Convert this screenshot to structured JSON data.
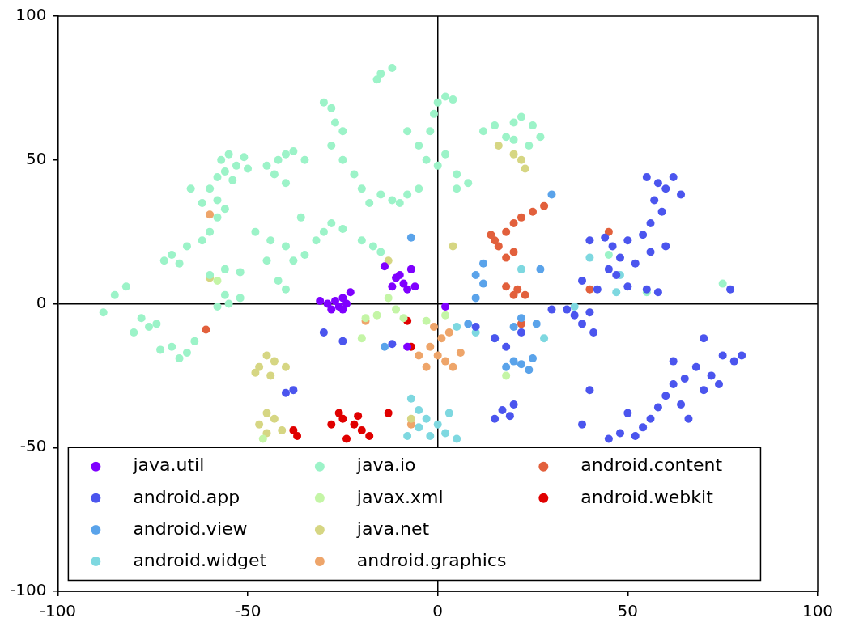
{
  "chart_data": {
    "type": "scatter",
    "xlim": [
      -100,
      100
    ],
    "xticks": [
      -100,
      -50,
      0,
      50,
      100
    ],
    "ylim": [
      -100,
      100
    ],
    "yticks": [
      -100,
      -50,
      0,
      50,
      100
    ],
    "grid": false,
    "legend": "lower left",
    "marker": "circle",
    "series": [
      {
        "name": "java.util",
        "color": "#7f00ff",
        "values": [
          [
            -29,
            0
          ],
          [
            -27,
            1
          ],
          [
            -25,
            2
          ],
          [
            -24,
            0
          ],
          [
            -26,
            -1
          ],
          [
            -28,
            -2
          ],
          [
            -23,
            4
          ],
          [
            -31,
            1
          ],
          [
            -25,
            -2
          ],
          [
            -11,
            9
          ],
          [
            -9,
            7
          ],
          [
            -8,
            5
          ],
          [
            -12,
            6
          ],
          [
            -10,
            10
          ],
          [
            -14,
            13
          ],
          [
            -7,
            12
          ],
          [
            -6,
            6
          ],
          [
            -8,
            -15
          ],
          [
            2,
            -1
          ]
        ]
      },
      {
        "name": "android.app",
        "color": "#4b55ee",
        "values": [
          [
            55,
            44
          ],
          [
            58,
            42
          ],
          [
            60,
            40
          ],
          [
            62,
            44
          ],
          [
            64,
            38
          ],
          [
            57,
            36
          ],
          [
            59,
            32
          ],
          [
            56,
            28
          ],
          [
            54,
            24
          ],
          [
            50,
            22
          ],
          [
            46,
            20
          ],
          [
            44,
            23
          ],
          [
            40,
            22
          ],
          [
            48,
            16
          ],
          [
            52,
            14
          ],
          [
            56,
            18
          ],
          [
            60,
            20
          ],
          [
            47,
            10
          ],
          [
            50,
            6
          ],
          [
            55,
            5
          ],
          [
            58,
            4
          ],
          [
            45,
            12
          ],
          [
            38,
            8
          ],
          [
            42,
            5
          ],
          [
            40,
            -3
          ],
          [
            38,
            -7
          ],
          [
            41,
            -10
          ],
          [
            36,
            -4
          ],
          [
            34,
            -2
          ],
          [
            70,
            -12
          ],
          [
            75,
            -18
          ],
          [
            78,
            -20
          ],
          [
            72,
            -25
          ],
          [
            68,
            -22
          ],
          [
            65,
            -26
          ],
          [
            62,
            -28
          ],
          [
            60,
            -32
          ],
          [
            58,
            -36
          ],
          [
            56,
            -40
          ],
          [
            54,
            -43
          ],
          [
            52,
            -46
          ],
          [
            64,
            -35
          ],
          [
            66,
            -40
          ],
          [
            70,
            -30
          ],
          [
            74,
            -28
          ],
          [
            80,
            -18
          ],
          [
            62,
            -20
          ],
          [
            50,
            -38
          ],
          [
            48,
            -45
          ],
          [
            45,
            -47
          ],
          [
            38,
            -42
          ],
          [
            40,
            -30
          ],
          [
            17,
            -37
          ],
          [
            15,
            -40
          ],
          [
            19,
            -39
          ],
          [
            20,
            -35
          ],
          [
            -38,
            -30
          ],
          [
            -40,
            -31
          ],
          [
            -30,
            -10
          ],
          [
            -25,
            -13
          ],
          [
            -12,
            -14
          ],
          [
            15,
            -12
          ],
          [
            18,
            -15
          ],
          [
            22,
            -10
          ],
          [
            10,
            -8
          ],
          [
            30,
            -2
          ],
          [
            77,
            5
          ]
        ]
      },
      {
        "name": "android.view",
        "color": "#5aa3ea",
        "values": [
          [
            20,
            -20
          ],
          [
            22,
            -21
          ],
          [
            25,
            -19
          ],
          [
            24,
            -23
          ],
          [
            18,
            -22
          ],
          [
            15,
            -12
          ],
          [
            12,
            7
          ],
          [
            10,
            10
          ],
          [
            12,
            14
          ],
          [
            10,
            2
          ],
          [
            30,
            38
          ],
          [
            -7,
            23
          ],
          [
            27,
            12
          ],
          [
            20,
            -8
          ],
          [
            22,
            -5
          ],
          [
            26,
            -7
          ],
          [
            -14,
            -15
          ],
          [
            8,
            -7
          ]
        ]
      },
      {
        "name": "android.widget",
        "color": "#7ed8e0",
        "values": [
          [
            -3,
            -40
          ],
          [
            0,
            -42
          ],
          [
            2,
            -45
          ],
          [
            -5,
            -37
          ],
          [
            3,
            -38
          ],
          [
            -2,
            -46
          ],
          [
            5,
            -47
          ],
          [
            -7,
            -33
          ],
          [
            -5,
            -43
          ],
          [
            -8,
            -46
          ],
          [
            40,
            16
          ],
          [
            48,
            10
          ],
          [
            47,
            4
          ],
          [
            36,
            -1
          ],
          [
            10,
            -10
          ],
          [
            5,
            -8
          ],
          [
            22,
            12
          ],
          [
            28,
            -12
          ]
        ]
      },
      {
        "name": "java.io",
        "color": "#9cf3c8",
        "values": [
          [
            -57,
            50
          ],
          [
            -55,
            52
          ],
          [
            -53,
            48
          ],
          [
            -51,
            51
          ],
          [
            -56,
            46
          ],
          [
            -50,
            47
          ],
          [
            -58,
            44
          ],
          [
            -54,
            43
          ],
          [
            -60,
            40
          ],
          [
            -65,
            40
          ],
          [
            -88,
            -3
          ],
          [
            -85,
            3
          ],
          [
            -82,
            6
          ],
          [
            -78,
            -5
          ],
          [
            -76,
            -8
          ],
          [
            -80,
            -10
          ],
          [
            -74,
            -7
          ],
          [
            -70,
            -15
          ],
          [
            -66,
            -17
          ],
          [
            -64,
            -13
          ],
          [
            -68,
            -19
          ],
          [
            -73,
            -16
          ],
          [
            -72,
            15
          ],
          [
            -70,
            17
          ],
          [
            -68,
            14
          ],
          [
            -66,
            20
          ],
          [
            -62,
            22
          ],
          [
            -60,
            25
          ],
          [
            -58,
            30
          ],
          [
            -56,
            33
          ],
          [
            -62,
            35
          ],
          [
            -58,
            36
          ],
          [
            -58,
            -1
          ],
          [
            -55,
            0
          ],
          [
            -52,
            2
          ],
          [
            -56,
            3
          ],
          [
            -60,
            10
          ],
          [
            -56,
            12
          ],
          [
            -52,
            11
          ],
          [
            -48,
            25
          ],
          [
            -44,
            22
          ],
          [
            -40,
            20
          ],
          [
            -38,
            15
          ],
          [
            -35,
            17
          ],
          [
            -32,
            22
          ],
          [
            -30,
            25
          ],
          [
            -28,
            28
          ],
          [
            -25,
            26
          ],
          [
            -36,
            30
          ],
          [
            -45,
            48
          ],
          [
            -42,
            50
          ],
          [
            -40,
            52
          ],
          [
            -38,
            53
          ],
          [
            -35,
            50
          ],
          [
            -43,
            45
          ],
          [
            -40,
            42
          ],
          [
            -30,
            70
          ],
          [
            -28,
            68
          ],
          [
            -27,
            63
          ],
          [
            -25,
            60
          ],
          [
            -28,
            55
          ],
          [
            -25,
            50
          ],
          [
            -22,
            45
          ],
          [
            -20,
            40
          ],
          [
            -18,
            35
          ],
          [
            -15,
            38
          ],
          [
            -12,
            36
          ],
          [
            -10,
            35
          ],
          [
            -8,
            38
          ],
          [
            -5,
            40
          ],
          [
            -15,
            80
          ],
          [
            -12,
            82
          ],
          [
            -16,
            78
          ],
          [
            -20,
            22
          ],
          [
            -17,
            20
          ],
          [
            -15,
            18
          ],
          [
            -5,
            55
          ],
          [
            -3,
            50
          ],
          [
            0,
            48
          ],
          [
            2,
            52
          ],
          [
            -2,
            60
          ],
          [
            -8,
            60
          ],
          [
            0,
            70
          ],
          [
            2,
            72
          ],
          [
            4,
            71
          ],
          [
            -1,
            66
          ],
          [
            5,
            45
          ],
          [
            8,
            42
          ],
          [
            5,
            40
          ],
          [
            12,
            60
          ],
          [
            15,
            62
          ],
          [
            18,
            58
          ],
          [
            20,
            63
          ],
          [
            22,
            65
          ],
          [
            25,
            62
          ],
          [
            27,
            58
          ],
          [
            20,
            57
          ],
          [
            24,
            55
          ],
          [
            -45,
            15
          ],
          [
            -42,
            8
          ],
          [
            -40,
            5
          ],
          [
            75,
            7
          ],
          [
            45,
            17
          ],
          [
            55,
            4
          ]
        ]
      },
      {
        "name": "javax.xml",
        "color": "#c4f5a6",
        "values": [
          [
            -13,
            2
          ],
          [
            -11,
            -2
          ],
          [
            -9,
            -5
          ],
          [
            -16,
            -4
          ],
          [
            -19,
            -5
          ],
          [
            -3,
            -6
          ],
          [
            -20,
            -12
          ],
          [
            2,
            -4
          ],
          [
            18,
            -25
          ],
          [
            -46,
            -47
          ],
          [
            -58,
            8
          ]
        ]
      },
      {
        "name": "java.net",
        "color": "#d6d683",
        "values": [
          [
            -45,
            -18
          ],
          [
            -43,
            -20
          ],
          [
            -47,
            -22
          ],
          [
            -44,
            -25
          ],
          [
            -48,
            -24
          ],
          [
            -40,
            -22
          ],
          [
            -45,
            -38
          ],
          [
            -43,
            -40
          ],
          [
            -47,
            -42
          ],
          [
            -41,
            -44
          ],
          [
            -45,
            -45
          ],
          [
            22,
            50
          ],
          [
            23,
            47
          ],
          [
            20,
            52
          ],
          [
            16,
            55
          ],
          [
            -13,
            15
          ],
          [
            4,
            20
          ],
          [
            -7,
            -40
          ],
          [
            -60,
            9
          ]
        ]
      },
      {
        "name": "android.graphics",
        "color": "#eea56a",
        "values": [
          [
            -2,
            -15
          ],
          [
            0,
            -18
          ],
          [
            2,
            -20
          ],
          [
            4,
            -22
          ],
          [
            -3,
            -22
          ],
          [
            -5,
            -18
          ],
          [
            1,
            -12
          ],
          [
            3,
            -10
          ],
          [
            -1,
            -8
          ],
          [
            6,
            -17
          ],
          [
            -60,
            31
          ],
          [
            -19,
            -6
          ],
          [
            -7,
            -42
          ]
        ]
      },
      {
        "name": "android.content",
        "color": "#e2603c",
        "values": [
          [
            15,
            22
          ],
          [
            18,
            25
          ],
          [
            20,
            28
          ],
          [
            22,
            30
          ],
          [
            25,
            32
          ],
          [
            28,
            34
          ],
          [
            16,
            20
          ],
          [
            20,
            18
          ],
          [
            14,
            24
          ],
          [
            18,
            16
          ],
          [
            21,
            5
          ],
          [
            23,
            3
          ],
          [
            18,
            6
          ],
          [
            20,
            3
          ],
          [
            45,
            25
          ],
          [
            40,
            5
          ],
          [
            -61,
            -9
          ],
          [
            22,
            -7
          ]
        ]
      },
      {
        "name": "android.webkit",
        "color": "#e00000",
        "values": [
          [
            -25,
            -40
          ],
          [
            -22,
            -42
          ],
          [
            -20,
            -44
          ],
          [
            -18,
            -46
          ],
          [
            -24,
            -47
          ],
          [
            -28,
            -42
          ],
          [
            -26,
            -38
          ],
          [
            -21,
            -39
          ],
          [
            -38,
            -44
          ],
          [
            -13,
            -38
          ],
          [
            -8,
            -6
          ],
          [
            -7,
            -15
          ],
          [
            -37,
            -46
          ]
        ]
      }
    ]
  }
}
